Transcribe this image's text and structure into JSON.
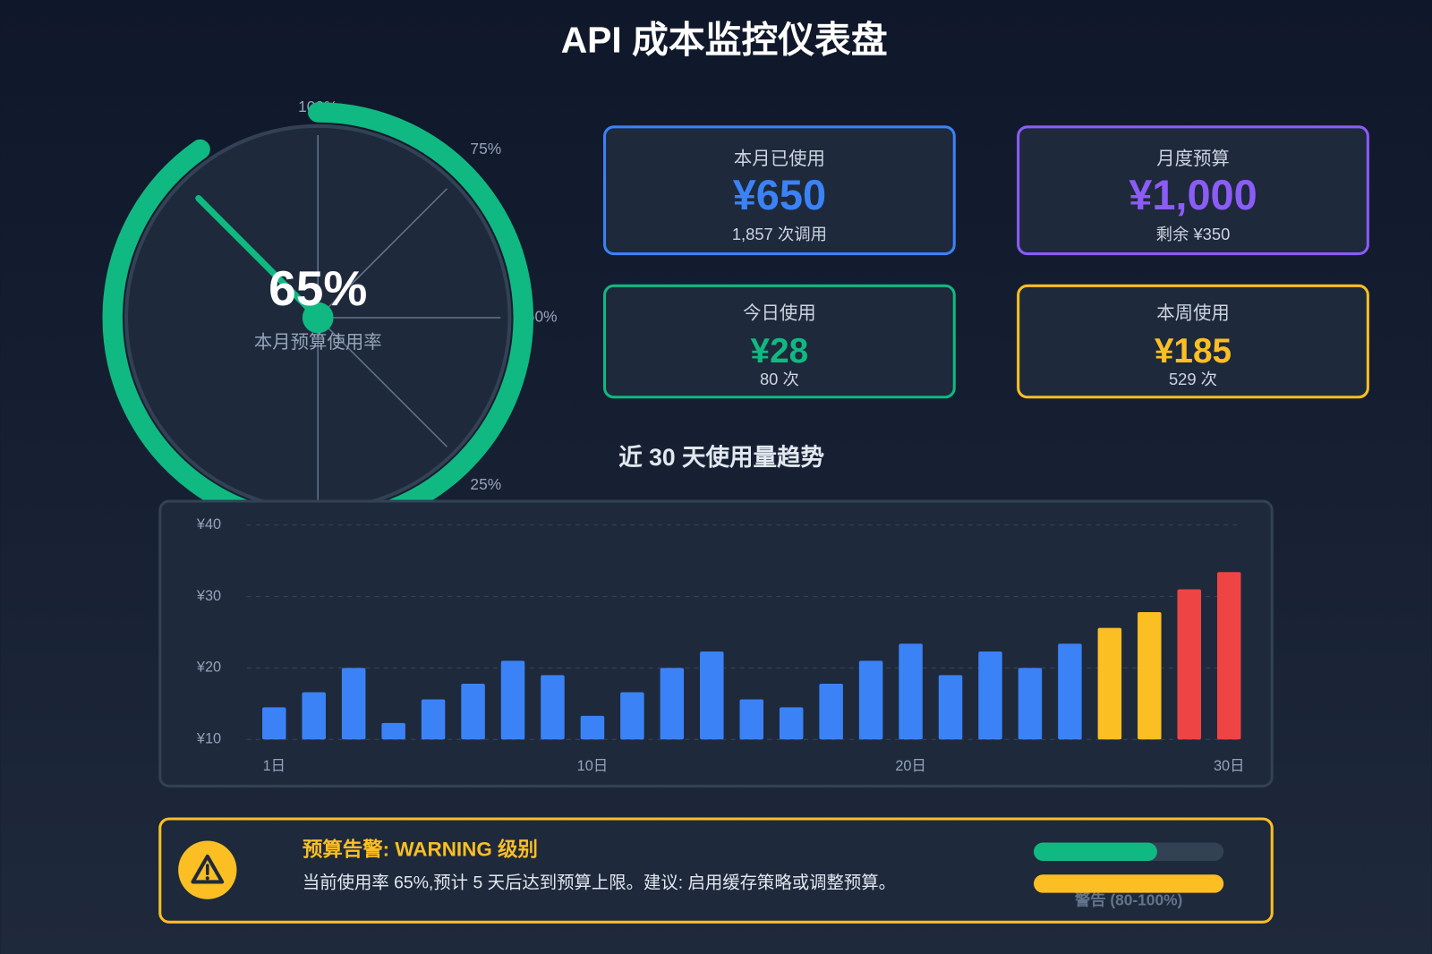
{
  "header": {
    "title": "API 成本监控仪表盘"
  },
  "gauge": {
    "value": 65,
    "value_label": "65%",
    "label": "本月预算使用率",
    "ticks": [
      {
        "value": 100,
        "label": "100%"
      },
      {
        "value": 75,
        "label": "75%"
      },
      {
        "value": 50,
        "label": "50%"
      },
      {
        "value": 25,
        "label": "25%"
      }
    ],
    "color": "#10b981"
  },
  "cards": [
    {
      "title": "本月已使用",
      "value": "¥650",
      "sub": "1,857 次调用",
      "color": "#3b82f6"
    },
    {
      "title": "月度预算",
      "value": "¥1,000",
      "sub": "剩余 ¥350",
      "color": "#8b5cf6"
    },
    {
      "title": "今日使用",
      "value": "¥28",
      "sub": "80 次",
      "color": "#10b981"
    },
    {
      "title": "本周使用",
      "value": "¥185",
      "sub": "529 次",
      "color": "#fbbf24"
    }
  ],
  "chart_data": {
    "type": "bar",
    "title": "近 30 天使用量趋势",
    "categories": [
      "1日",
      null,
      null,
      null,
      null,
      null,
      null,
      null,
      "10日",
      null,
      null,
      null,
      null,
      null,
      null,
      null,
      "20日",
      null,
      null,
      null,
      null,
      null,
      null,
      null,
      "30日"
    ],
    "values": [
      14.5,
      16.6,
      20,
      12.3,
      15.6,
      17.8,
      21,
      19,
      13.3,
      16.6,
      20,
      22.3,
      15.6,
      14.5,
      17.8,
      21,
      23.4,
      19,
      22.3,
      20,
      23.4,
      25.6,
      27.8,
      31,
      33.4
    ],
    "colors": [
      "#3b82f6",
      "#3b82f6",
      "#3b82f6",
      "#3b82f6",
      "#3b82f6",
      "#3b82f6",
      "#3b82f6",
      "#3b82f6",
      "#3b82f6",
      "#3b82f6",
      "#3b82f6",
      "#3b82f6",
      "#3b82f6",
      "#3b82f6",
      "#3b82f6",
      "#3b82f6",
      "#3b82f6",
      "#3b82f6",
      "#3b82f6",
      "#3b82f6",
      "#3b82f6",
      "#fbbf24",
      "#fbbf24",
      "#ef4444",
      "#ef4444"
    ],
    "ylim": [
      10,
      40
    ],
    "yticks": [
      {
        "value": 10,
        "label": "¥10"
      },
      {
        "value": 20,
        "label": "¥20"
      },
      {
        "value": 30,
        "label": "¥30"
      },
      {
        "value": 40,
        "label": "¥40"
      }
    ],
    "grid": true
  },
  "alert": {
    "title": "预算告警: WARNING 级别",
    "message": "当前使用率 65%,预计 5 天后达到预算上限。建议: 启用缓存策略或调整预算。",
    "legend": "警告 (80-100%)"
  }
}
